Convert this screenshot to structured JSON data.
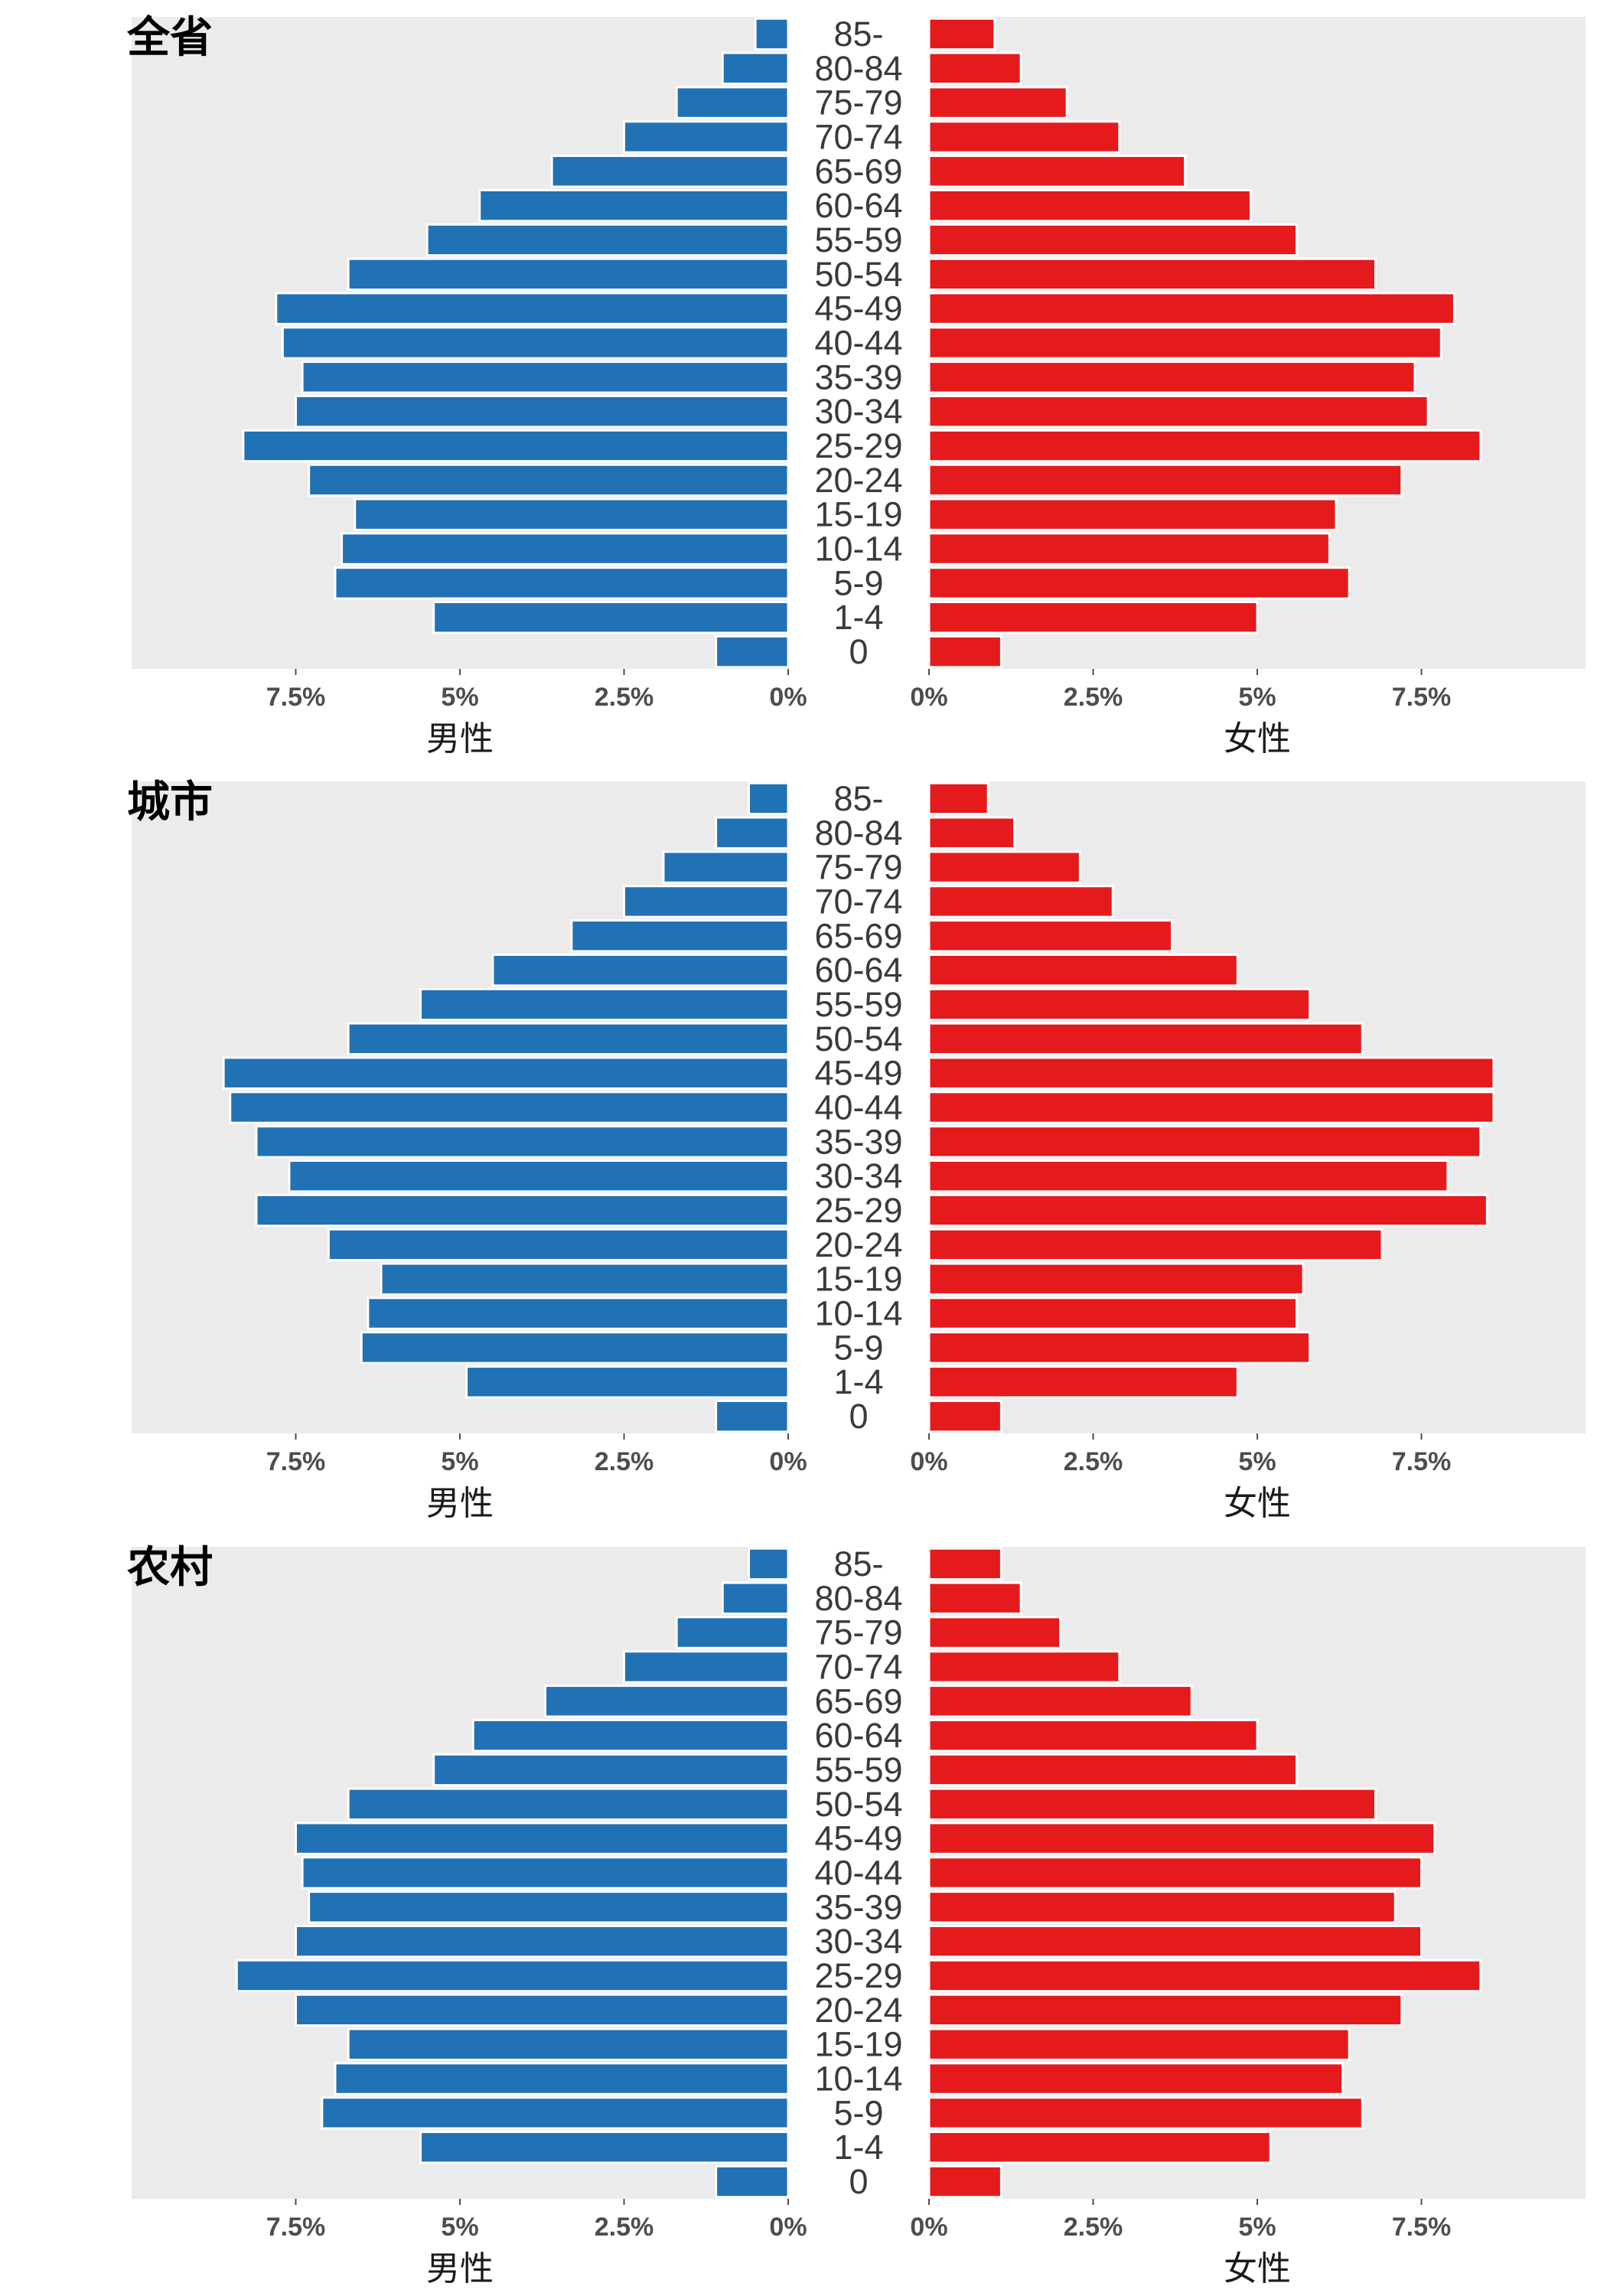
{
  "chart_data": {
    "type": "bar",
    "subtype": "population-pyramid",
    "age_groups": [
      "0",
      "1-4",
      "5-9",
      "10-14",
      "15-19",
      "20-24",
      "25-29",
      "30-34",
      "35-39",
      "40-44",
      "45-49",
      "50-54",
      "55-59",
      "60-64",
      "65-69",
      "70-74",
      "75-79",
      "80-84",
      "85-"
    ],
    "x_range": [
      0,
      10
    ],
    "x_unit": "%",
    "male_ticks": [
      "7.5%",
      "5%",
      "2.5%",
      "0%"
    ],
    "female_ticks": [
      "0%",
      "2.5%",
      "5%",
      "7.5%"
    ],
    "male_axis_label": "男性",
    "female_axis_label": "女性",
    "colors": {
      "male": "#2171b5",
      "female": "#e41a1c",
      "panel_bg": "#ebebeb",
      "bar_outline": "#ffffff"
    },
    "panels": [
      {
        "title": "全省",
        "male": [
          1.1,
          5.4,
          6.9,
          6.8,
          6.6,
          7.3,
          8.3,
          7.5,
          7.4,
          7.7,
          7.8,
          6.7,
          5.5,
          4.7,
          3.6,
          2.5,
          1.7,
          1.0,
          0.5
        ],
        "female": [
          1.1,
          5.0,
          6.4,
          6.1,
          6.2,
          7.2,
          8.4,
          7.6,
          7.4,
          7.8,
          8.0,
          6.8,
          5.6,
          4.9,
          3.9,
          2.9,
          2.1,
          1.4,
          1.0
        ]
      },
      {
        "title": "城市",
        "male": [
          1.1,
          4.9,
          6.5,
          6.4,
          6.2,
          7.0,
          8.1,
          7.6,
          8.1,
          8.5,
          8.6,
          6.7,
          5.6,
          4.5,
          3.3,
          2.5,
          1.9,
          1.1,
          0.6
        ],
        "female": [
          1.1,
          4.7,
          5.8,
          5.6,
          5.7,
          6.9,
          8.5,
          7.9,
          8.4,
          8.6,
          8.6,
          6.6,
          5.8,
          4.7,
          3.7,
          2.8,
          2.3,
          1.3,
          0.9
        ]
      },
      {
        "title": "农村",
        "male": [
          1.1,
          5.6,
          7.1,
          6.9,
          6.7,
          7.5,
          8.4,
          7.5,
          7.3,
          7.4,
          7.5,
          6.7,
          5.4,
          4.8,
          3.7,
          2.5,
          1.7,
          1.0,
          0.6
        ],
        "female": [
          1.1,
          5.2,
          6.6,
          6.3,
          6.4,
          7.2,
          8.4,
          7.5,
          7.1,
          7.5,
          7.7,
          6.8,
          5.6,
          5.0,
          4.0,
          2.9,
          2.0,
          1.4,
          1.1
        ]
      }
    ]
  }
}
